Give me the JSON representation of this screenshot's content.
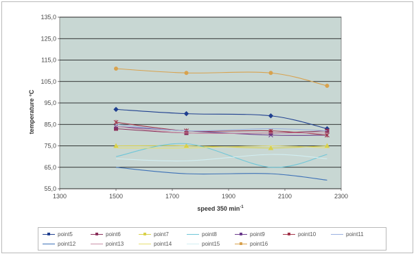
{
  "chart_data": {
    "type": "line",
    "title": "",
    "xlabel": "speed 350 min",
    "xlabel_superscript": "-1",
    "ylabel": "temperature °C",
    "x_ticks": [
      "1300",
      "1500",
      "1700",
      "1900",
      "2100",
      "2300"
    ],
    "y_ticks": [
      "55,0",
      "65,0",
      "75,0",
      "85,0",
      "95,0",
      "105,0",
      "115,0",
      "125,0",
      "135,0"
    ],
    "xlim": [
      1300,
      2300
    ],
    "ylim": [
      55,
      135
    ],
    "grid": true,
    "legend_position": "bottom",
    "plot_background": "#c8d7d3",
    "series": [
      {
        "name": "point5",
        "color": "#1f3f8f",
        "marker": "diamond",
        "x": [
          1500,
          1750,
          2050,
          2250
        ],
        "y": [
          92,
          90,
          89,
          83
        ]
      },
      {
        "name": "point6",
        "color": "#8a2f5a",
        "marker": "square",
        "x": [
          1500,
          1750,
          2050,
          2250
        ],
        "y": [
          83,
          81,
          81,
          82
        ]
      },
      {
        "name": "point7",
        "color": "#d9d14a",
        "marker": "triangle",
        "x": [
          1500,
          1750,
          2050,
          2250
        ],
        "y": [
          75,
          75,
          74,
          75
        ]
      },
      {
        "name": "point8",
        "color": "#6ec6d8",
        "marker": "none",
        "x": [
          1500,
          1750,
          2050,
          2250
        ],
        "y": [
          70,
          76,
          65,
          71
        ]
      },
      {
        "name": "point9",
        "color": "#6a3a8c",
        "marker": "cross",
        "x": [
          1500,
          1750,
          2050,
          2250
        ],
        "y": [
          84,
          82,
          80,
          80
        ]
      },
      {
        "name": "point10",
        "color": "#a2344a",
        "marker": "star",
        "x": [
          1500,
          1750,
          2050,
          2250
        ],
        "y": [
          86,
          82,
          82,
          80
        ]
      },
      {
        "name": "point11",
        "color": "#9ab0e0",
        "marker": "none",
        "x": [
          1500,
          1750,
          2050,
          2250
        ],
        "y": [
          85,
          82,
          83,
          82
        ]
      },
      {
        "name": "point12",
        "color": "#3b6fb6",
        "marker": "none",
        "x": [
          1500,
          1750,
          2050,
          2250
        ],
        "y": [
          65,
          62,
          62,
          59
        ]
      },
      {
        "name": "point13",
        "color": "#c98fa6",
        "marker": "none",
        "x": [
          1500,
          1750,
          2050,
          2250
        ],
        "y": [
          84,
          81,
          81,
          81
        ]
      },
      {
        "name": "point14",
        "color": "#e6df70",
        "marker": "none",
        "x": [
          1500,
          1750,
          2050,
          2250
        ],
        "y": [
          74,
          74,
          75,
          74
        ]
      },
      {
        "name": "point15",
        "color": "#d2eef2",
        "marker": "none",
        "x": [
          1500,
          1750,
          2050,
          2250
        ],
        "y": [
          69,
          68,
          71,
          69
        ]
      },
      {
        "name": "point16",
        "color": "#d8a24e",
        "marker": "circle",
        "x": [
          1500,
          1750,
          2050,
          2250
        ],
        "y": [
          111,
          109,
          109,
          103
        ]
      }
    ]
  }
}
